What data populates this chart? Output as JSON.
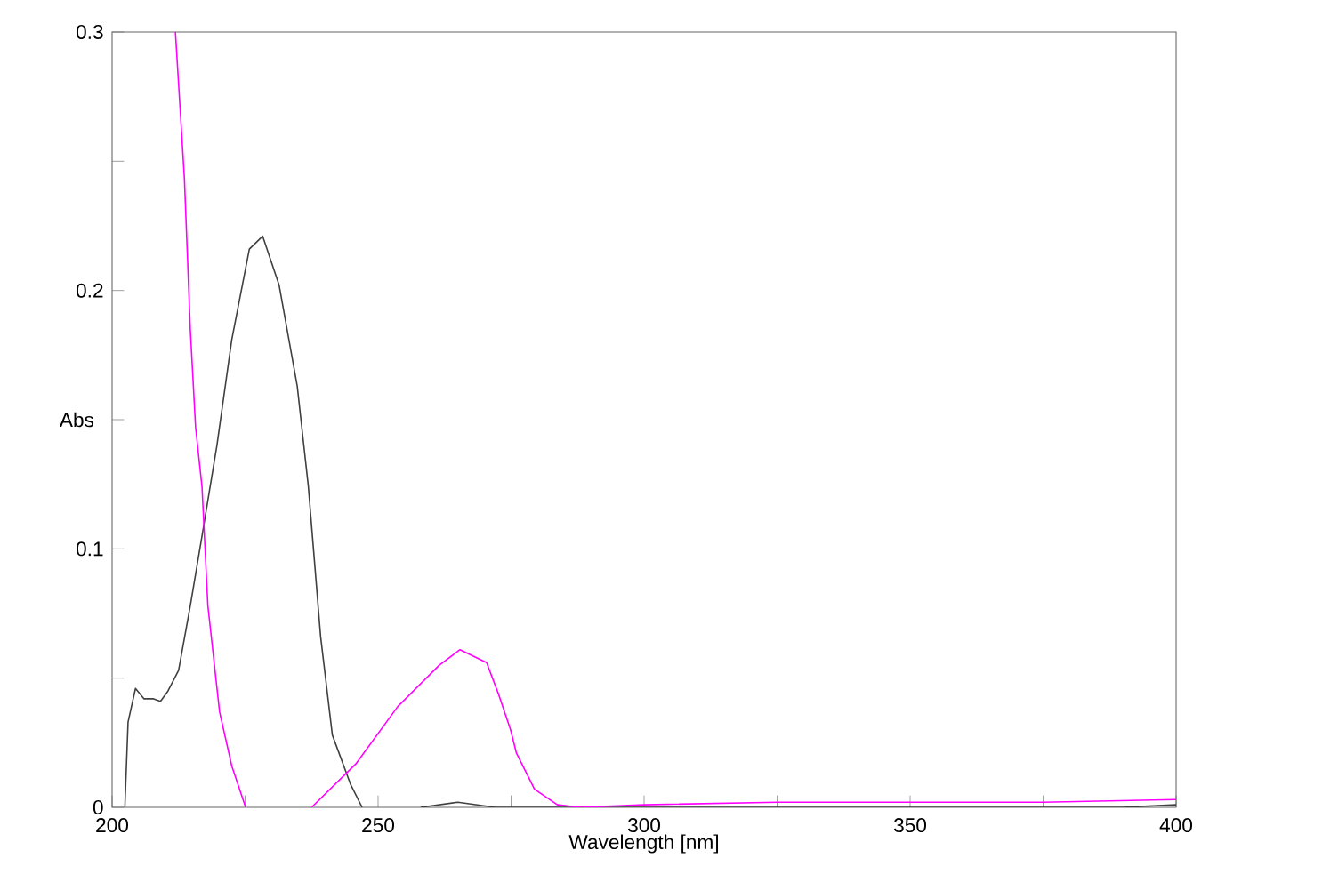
{
  "chart_data": {
    "type": "line",
    "xlabel": "Wavelength [nm]",
    "ylabel": "Abs",
    "xlim": [
      200,
      400
    ],
    "ylim": [
      0,
      0.3
    ],
    "xticks": [
      200,
      {
        "value": 225,
        "label": null
      },
      250,
      {
        "value": 275,
        "label": null
      },
      300,
      {
        "value": 325,
        "label": null
      },
      350,
      {
        "value": 375,
        "label": null
      },
      400
    ],
    "yticks": [
      0,
      {
        "value": 0.05,
        "label": null
      },
      0.1,
      {
        "value": 0.15,
        "label": null
      },
      0.2,
      {
        "value": 0.25,
        "label": null
      },
      0.3
    ],
    "marker": "none",
    "line_style": "solid",
    "series": [
      {
        "color": "#404040",
        "x": [
          202.4,
          203,
          204.4,
          206,
          207.8,
          209.1,
          210.5,
          212.5,
          214.7,
          216.9,
          219.7,
          222.5,
          225.8,
          228.3,
          231.4,
          234.8,
          236.9,
          239.2,
          241.4,
          244.8,
          247,
          250,
          258,
          265,
          272,
          390,
          400
        ],
        "values": [
          0,
          0.033,
          0.046,
          0.042,
          0.042,
          0.041,
          0.045,
          0.053,
          0.078,
          0.105,
          0.14,
          0.181,
          0.216,
          0.221,
          0.202,
          0.163,
          0.124,
          0.066,
          0.028,
          0.009,
          0,
          null,
          0,
          0.002,
          0,
          0,
          0.001
        ]
      },
      {
        "color": "#ff00ff",
        "x": [
          211.9,
          213.6,
          214.7,
          215.7,
          216.9,
          218,
          220.2,
          222.5,
          225.1,
          230,
          237.5,
          245.9,
          253.7,
          261.5,
          265.4,
          270.4,
          272.6,
          274.9,
          276,
          279.4,
          283.7,
          288,
          300,
          325,
          350,
          375,
          400
        ],
        "values": [
          0.3,
          0.243,
          0.185,
          0.147,
          0.124,
          0.078,
          0.037,
          0.016,
          0,
          null,
          0,
          0.017,
          0.039,
          0.055,
          0.061,
          0.056,
          0.044,
          0.03,
          0.021,
          0.007,
          0.001,
          0,
          0.001,
          0.002,
          0.002,
          0.002,
          0.003
        ]
      }
    ]
  }
}
